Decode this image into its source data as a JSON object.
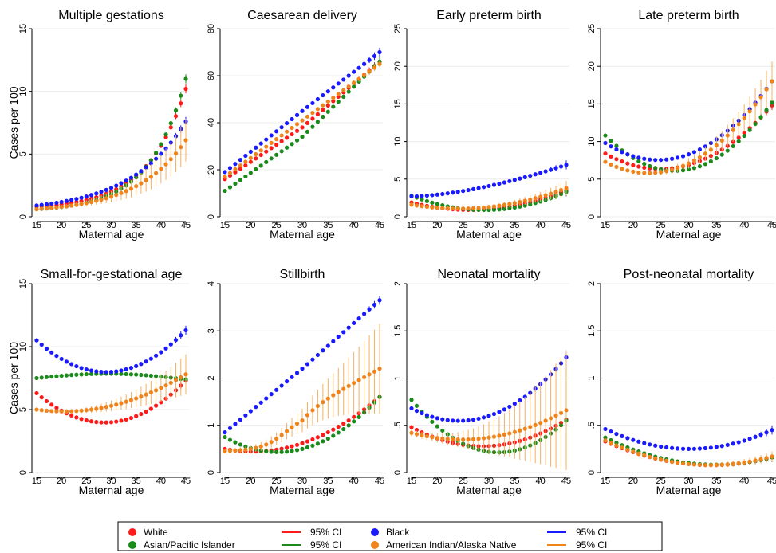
{
  "colors": {
    "White": "#ff1a1a",
    "Asian/Pacific Islander": "#1a8a1a",
    "Black": "#1a1aff",
    "American Indian/Alaska Native": "#f0841a",
    "ci_AIAN": "#f4b060"
  },
  "legend": {
    "entries": [
      {
        "label": "White",
        "series": "White",
        "kind": "dot"
      },
      {
        "label": "Asian/Pacific Islander",
        "series": "Asian/Pacific Islander",
        "kind": "dot"
      },
      {
        "label": "95% CI",
        "series": "White",
        "kind": "line"
      },
      {
        "label": "95% CI",
        "series": "Asian/Pacific Islander",
        "kind": "line"
      },
      {
        "label": "Black",
        "series": "Black",
        "kind": "dot"
      },
      {
        "label": "American Indian/Alaska Native",
        "series": "American Indian/Alaska Native",
        "kind": "dot"
      },
      {
        "label": "95% CI",
        "series": "Black",
        "kind": "line"
      },
      {
        "label": "95% CI",
        "series": "American Indian/Alaska Native",
        "kind": "line"
      }
    ]
  },
  "chart_data": [
    {
      "type": "scatter",
      "title": "Multiple gestations",
      "xlabel": "Maternal age",
      "ylabel": "Cases per 100",
      "xlim": [
        15,
        45
      ],
      "xticks": [
        15,
        20,
        25,
        30,
        35,
        40,
        45
      ],
      "ylim": [
        0,
        15
      ],
      "yticks": [
        0,
        5,
        10,
        15
      ],
      "series": [
        {
          "name": "White",
          "start": 0.8,
          "mid": 2.0,
          "end": 10.2,
          "shape": "exp"
        },
        {
          "name": "Asian/Pacific Islander",
          "start": 0.6,
          "mid": 1.8,
          "end": 11.0,
          "shape": "exp"
        },
        {
          "name": "Black",
          "start": 0.9,
          "mid": 2.3,
          "end": 7.6,
          "shape": "exp"
        },
        {
          "name": "American Indian/Alaska Native",
          "start": 0.6,
          "mid": 1.6,
          "end": 6.1,
          "shape": "exp",
          "ci": 1.6
        }
      ]
    },
    {
      "type": "scatter",
      "title": "Caesarean delivery",
      "xlabel": "Maternal age",
      "ylabel": "",
      "xlim": [
        15,
        45
      ],
      "xticks": [
        15,
        20,
        25,
        30,
        35,
        40,
        45
      ],
      "ylim": [
        0,
        80
      ],
      "yticks": [
        0,
        20,
        40,
        60,
        80
      ],
      "series": [
        {
          "name": "White",
          "start": 16,
          "mid": 38,
          "end": 66,
          "shape": "lin"
        },
        {
          "name": "Asian/Pacific Islander",
          "start": 11,
          "mid": 34,
          "end": 66,
          "shape": "lin"
        },
        {
          "name": "Black",
          "start": 19,
          "mid": 45,
          "end": 70,
          "shape": "lin"
        },
        {
          "name": "American Indian/Alaska Native",
          "start": 17,
          "mid": 41,
          "end": 65,
          "shape": "lin",
          "ci": 1.4
        }
      ]
    },
    {
      "type": "scatter",
      "title": "Early preterm birth",
      "xlabel": "Maternal age",
      "ylabel": "",
      "xlim": [
        15,
        45
      ],
      "xticks": [
        15,
        20,
        25,
        30,
        35,
        40,
        45
      ],
      "ylim": [
        0,
        25
      ],
      "yticks": [
        0,
        5,
        10,
        15,
        20,
        25
      ],
      "series": [
        {
          "name": "White",
          "start": 1.9,
          "mid": 1.0,
          "end": 3.5,
          "shape": "quad"
        },
        {
          "name": "Asian/Pacific Islander",
          "start": 2.8,
          "mid": 0.9,
          "end": 3.3,
          "shape": "quad"
        },
        {
          "name": "Black",
          "start": 2.7,
          "mid": 3.7,
          "end": 6.9,
          "shape": "curve"
        },
        {
          "name": "American Indian/Alaska Native",
          "start": 1.6,
          "mid": 1.3,
          "end": 3.8,
          "shape": "quad",
          "ci": 0.9
        }
      ]
    },
    {
      "type": "scatter",
      "title": "Late preterm birth",
      "xlabel": "Maternal age",
      "ylabel": "",
      "xlim": [
        15,
        45
      ],
      "xticks": [
        15,
        20,
        25,
        30,
        35,
        40,
        45
      ],
      "ylim": [
        0,
        25
      ],
      "yticks": [
        0,
        5,
        10,
        15,
        20,
        25
      ],
      "series": [
        {
          "name": "White",
          "start": 8.4,
          "mid": 6.9,
          "end": 14.8,
          "shape": "quad"
        },
        {
          "name": "Asian/Pacific Islander",
          "start": 10.8,
          "mid": 6.3,
          "end": 15.2,
          "shape": "quad"
        },
        {
          "name": "Black",
          "start": 9.8,
          "mid": 8.3,
          "end": 18.0,
          "shape": "quad"
        },
        {
          "name": "American Indian/Alaska Native",
          "start": 7.3,
          "mid": 7.1,
          "end": 18.0,
          "shape": "quad",
          "ci": 2.5
        }
      ]
    },
    {
      "type": "scatter",
      "title": "Small-for-gestational age",
      "xlabel": "Maternal age",
      "ylabel": "Cases per 100",
      "xlim": [
        15,
        45
      ],
      "xticks": [
        15,
        20,
        25,
        30,
        35,
        40,
        45
      ],
      "ylim": [
        0,
        15
      ],
      "yticks": [
        0,
        5,
        10,
        15
      ],
      "series": [
        {
          "name": "White",
          "start": 6.3,
          "mid": 4.0,
          "end": 7.3,
          "shape": "quad"
        },
        {
          "name": "Asian/Pacific Islander",
          "start": 7.5,
          "mid": 7.4,
          "end": 7.2,
          "shape": "wave"
        },
        {
          "name": "Black",
          "start": 10.5,
          "mid": 8.0,
          "end": 11.3,
          "shape": "quad"
        },
        {
          "name": "American Indian/Alaska Native",
          "start": 5.0,
          "mid": 5.3,
          "end": 7.8,
          "shape": "quad",
          "ci": 1.5
        }
      ]
    },
    {
      "type": "scatter",
      "title": "Stillbirth",
      "xlabel": "Maternal age",
      "ylabel": "",
      "xlim": [
        15,
        45
      ],
      "xticks": [
        15,
        20,
        25,
        30,
        35,
        40,
        45
      ],
      "ylim": [
        0,
        4
      ],
      "yticks": [
        0,
        1,
        2,
        3,
        4
      ],
      "series": [
        {
          "name": "White",
          "start": 0.5,
          "mid": 0.62,
          "end": 1.6,
          "shape": "quad"
        },
        {
          "name": "Asian/Pacific Islander",
          "start": 0.75,
          "mid": 0.5,
          "end": 1.6,
          "shape": "quad"
        },
        {
          "name": "Black",
          "start": 0.85,
          "mid": 2.2,
          "end": 3.65,
          "shape": "lin"
        },
        {
          "name": "American Indian/Alaska Native",
          "start": 0.45,
          "mid": 1.3,
          "end": 2.2,
          "shape": "sig",
          "ci": 0.9
        }
      ]
    },
    {
      "type": "scatter",
      "title": "Neonatal mortality",
      "xlabel": "Maternal age",
      "ylabel": "",
      "xlim": [
        15,
        45
      ],
      "xticks": [
        15,
        20,
        25,
        30,
        35,
        40,
        45
      ],
      "ylim": [
        0,
        2
      ],
      "yticks": [
        0,
        0.5,
        1,
        1.5,
        2
      ],
      "yticklabels": [
        "0",
        ".5",
        "1",
        "1.5",
        "2"
      ],
      "series": [
        {
          "name": "White",
          "start": 0.48,
          "mid": 0.28,
          "end": 0.56,
          "shape": "quad"
        },
        {
          "name": "Asian/Pacific Islander",
          "start": 0.77,
          "mid": 0.22,
          "end": 0.55,
          "shape": "quad"
        },
        {
          "name": "Black",
          "start": 0.68,
          "mid": 0.6,
          "end": 1.22,
          "shape": "quad"
        },
        {
          "name": "American Indian/Alaska Native",
          "start": 0.42,
          "mid": 0.37,
          "end": 0.66,
          "shape": "quad",
          "ci": 0.6
        }
      ]
    },
    {
      "type": "scatter",
      "title": "Post-neonatal mortality",
      "xlabel": "Maternal age",
      "ylabel": "",
      "xlim": [
        15,
        45
      ],
      "xticks": [
        15,
        20,
        25,
        30,
        35,
        40,
        45
      ],
      "ylim": [
        0,
        2
      ],
      "yticks": [
        0,
        0.5,
        1,
        1.5,
        2
      ],
      "yticklabels": [
        "0",
        ".5",
        "1",
        "1.5",
        "2"
      ],
      "series": [
        {
          "name": "White",
          "start": 0.33,
          "mid": 0.09,
          "end": 0.16,
          "shape": "quad"
        },
        {
          "name": "Asian/Pacific Islander",
          "start": 0.37,
          "mid": 0.1,
          "end": 0.16,
          "shape": "quad"
        },
        {
          "name": "Black",
          "start": 0.46,
          "mid": 0.25,
          "end": 0.45,
          "shape": "quad"
        },
        {
          "name": "American Indian/Alaska Native",
          "start": 0.34,
          "mid": 0.09,
          "end": 0.17,
          "shape": "quad",
          "ci": 0.05
        }
      ]
    }
  ]
}
